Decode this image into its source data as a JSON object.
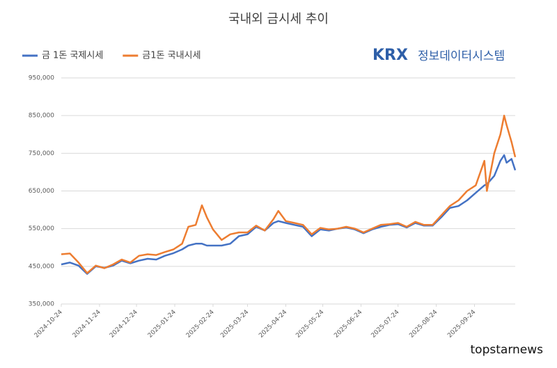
{
  "chart_data": {
    "type": "line",
    "title": "국내외 금시세 추이",
    "logo": "KRX",
    "logo_subtitle": "정보데이터시스템",
    "watermark": "topstarnews",
    "x": [
      "2024-10-24",
      "2024-10-31",
      "2024-11-07",
      "2024-11-14",
      "2024-11-21",
      "2024-11-28",
      "2024-12-05",
      "2024-12-12",
      "2024-12-19",
      "2024-12-26",
      "2025-01-02",
      "2025-01-09",
      "2025-01-16",
      "2025-01-23",
      "2025-01-30",
      "2025-02-04",
      "2025-02-10",
      "2025-02-15",
      "2025-02-19",
      "2025-02-24",
      "2025-03-03",
      "2025-03-10",
      "2025-03-17",
      "2025-03-24",
      "2025-03-31",
      "2025-04-07",
      "2025-04-14",
      "2025-04-18",
      "2025-04-24",
      "2025-05-01",
      "2025-05-08",
      "2025-05-15",
      "2025-05-22",
      "2025-05-29",
      "2025-06-05",
      "2025-06-12",
      "2025-06-19",
      "2025-06-26",
      "2025-07-03",
      "2025-07-10",
      "2025-07-17",
      "2025-07-24",
      "2025-07-31",
      "2025-08-07",
      "2025-08-14",
      "2025-08-21",
      "2025-08-28",
      "2025-09-04",
      "2025-09-11",
      "2025-09-18",
      "2025-09-25",
      "2025-10-02",
      "2025-10-04",
      "2025-10-10",
      "2025-10-15",
      "2025-10-18",
      "2025-10-20",
      "2025-10-24",
      "2025-10-27"
    ],
    "series": [
      {
        "name": "금 1돈 국제시세",
        "color": "#4472c4",
        "values": [
          455000,
          460000,
          452000,
          430000,
          450000,
          446000,
          452000,
          465000,
          458000,
          465000,
          470000,
          468000,
          478000,
          485000,
          495000,
          505000,
          510000,
          510000,
          505000,
          505000,
          505000,
          510000,
          530000,
          535000,
          555000,
          545000,
          565000,
          570000,
          565000,
          560000,
          555000,
          530000,
          548000,
          545000,
          550000,
          553000,
          548000,
          538000,
          548000,
          555000,
          560000,
          562000,
          553000,
          565000,
          558000,
          558000,
          580000,
          605000,
          610000,
          625000,
          645000,
          665000,
          668000,
          690000,
          730000,
          745000,
          725000,
          735000,
          705000
        ]
      },
      {
        "name": "금1돈 국내시세",
        "color": "#ed7d31",
        "values": [
          482000,
          484000,
          460000,
          432000,
          452000,
          445000,
          455000,
          468000,
          460000,
          478000,
          482000,
          480000,
          488000,
          495000,
          510000,
          555000,
          560000,
          612000,
          580000,
          548000,
          520000,
          535000,
          540000,
          540000,
          558000,
          545000,
          575000,
          597000,
          570000,
          565000,
          560000,
          535000,
          552000,
          548000,
          550000,
          555000,
          550000,
          540000,
          550000,
          560000,
          562000,
          565000,
          555000,
          568000,
          560000,
          560000,
          585000,
          610000,
          625000,
          650000,
          665000,
          730000,
          650000,
          750000,
          800000,
          850000,
          825000,
          780000,
          740000
        ]
      }
    ],
    "xlim": [
      "2024-10-24",
      "2025-10-27"
    ],
    "xticks": [
      "2024-10-24",
      "2024-11-24",
      "2024-12-24",
      "2025-01-24",
      "2025-02-24",
      "2025-03-24",
      "2025-04-24",
      "2025-05-24",
      "2025-06-24",
      "2025-07-24",
      "2025-08-24",
      "2025-09-24"
    ],
    "ylim": [
      350000,
      950000
    ],
    "yticks": [
      {
        "value": 350000,
        "label": "350,000"
      },
      {
        "value": 450000,
        "label": "450,000"
      },
      {
        "value": 550000,
        "label": "550,000"
      },
      {
        "value": 650000,
        "label": "650,000"
      },
      {
        "value": 750000,
        "label": "750,000"
      },
      {
        "value": 850000,
        "label": "850,000"
      },
      {
        "value": 950000,
        "label": "950,000"
      }
    ],
    "grid": true
  }
}
